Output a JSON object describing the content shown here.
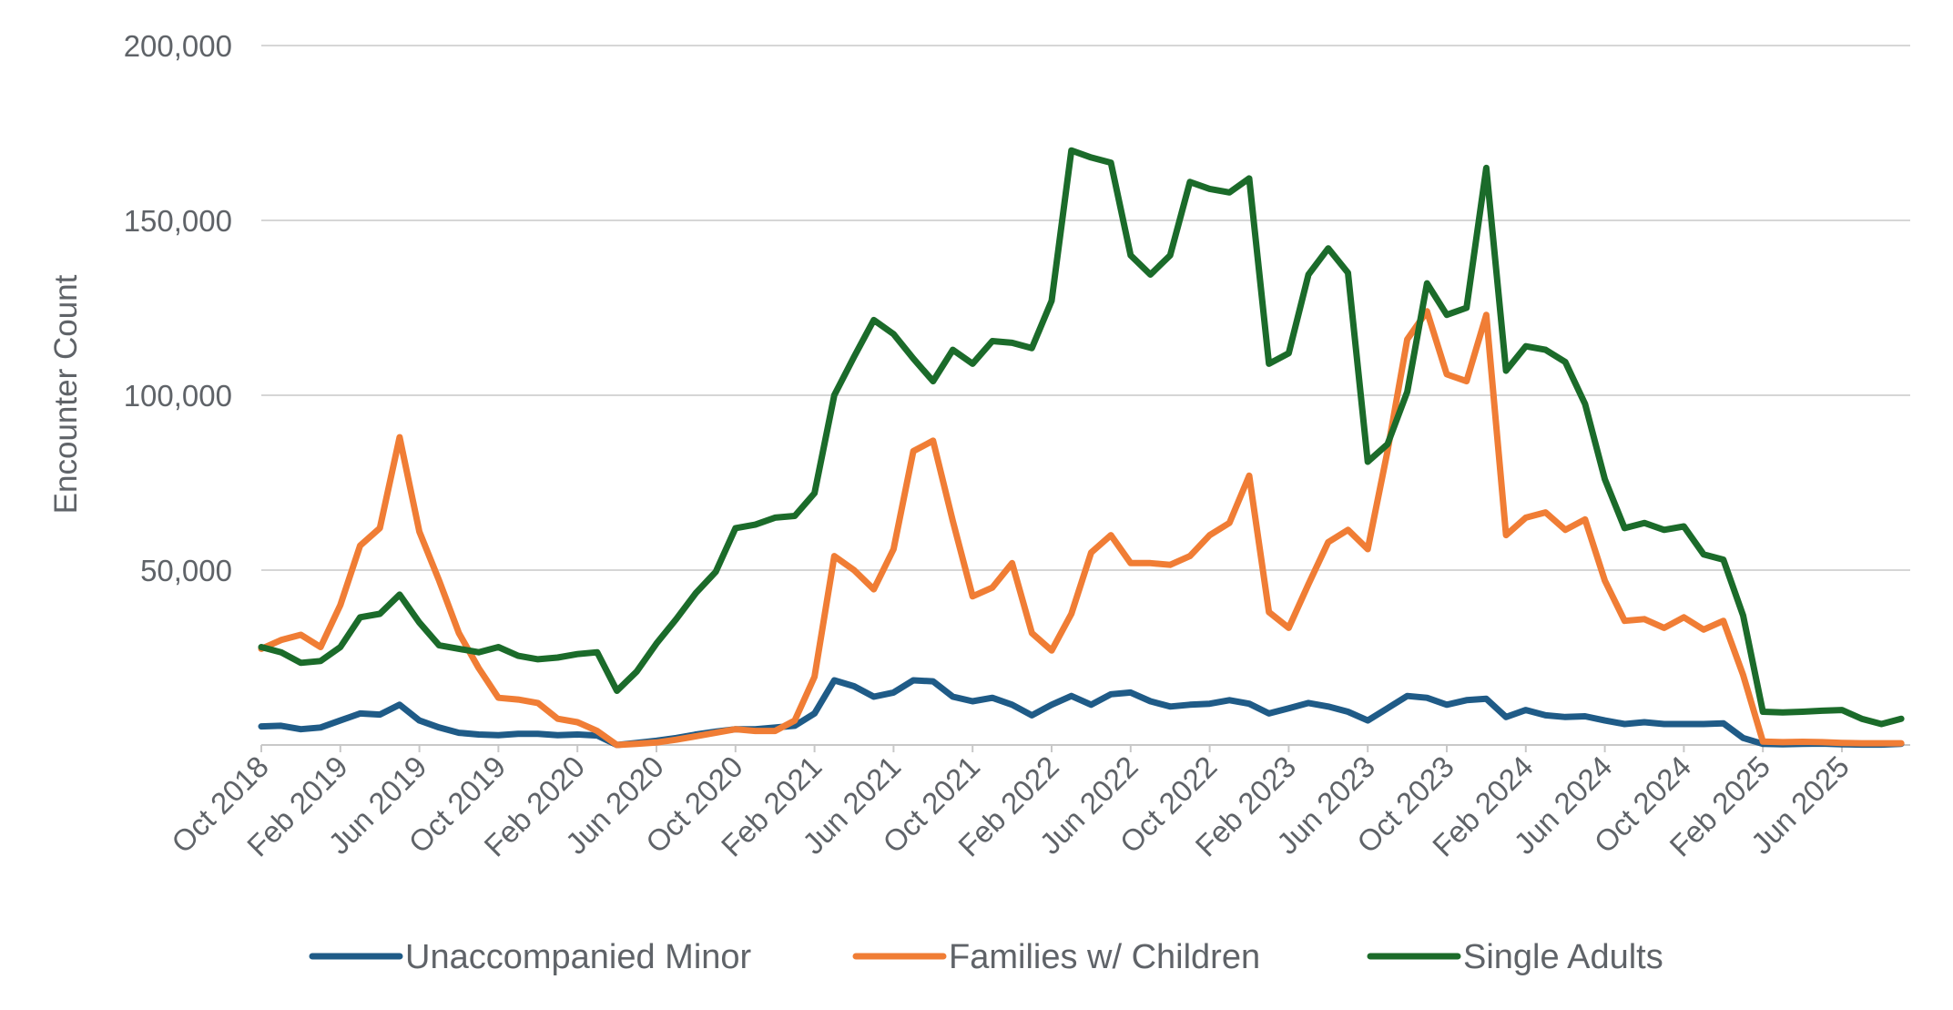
{
  "chart_data": {
    "type": "line",
    "title": "",
    "xlabel": "",
    "ylabel": "Encounter Count",
    "ylim": [
      0,
      200000
    ],
    "yticks": [
      50000,
      100000,
      150000,
      200000
    ],
    "ytick_labels": [
      "50,000",
      "100,000",
      "150,000",
      "200,000"
    ],
    "x": [
      "Oct 2018",
      "Nov 2018",
      "Dec 2018",
      "Jan 2019",
      "Feb 2019",
      "Mar 2019",
      "Apr 2019",
      "May 2019",
      "Jun 2019",
      "Jul 2019",
      "Aug 2019",
      "Sep 2019",
      "Oct 2019",
      "Nov 2019",
      "Dec 2019",
      "Jan 2020",
      "Feb 2020",
      "Mar 2020",
      "Apr 2020",
      "May 2020",
      "Jun 2020",
      "Jul 2020",
      "Aug 2020",
      "Sep 2020",
      "Oct 2020",
      "Nov 2020",
      "Dec 2020",
      "Jan 2021",
      "Feb 2021",
      "Mar 2021",
      "Apr 2021",
      "May 2021",
      "Jun 2021",
      "Jul 2021",
      "Aug 2021",
      "Sep 2021",
      "Oct 2021",
      "Nov 2021",
      "Dec 2021",
      "Jan 2022",
      "Feb 2022",
      "Mar 2022",
      "Apr 2022",
      "May 2022",
      "Jun 2022",
      "Jul 2022",
      "Aug 2022",
      "Sep 2022",
      "Oct 2022",
      "Nov 2022",
      "Dec 2022",
      "Jan 2023",
      "Feb 2023",
      "Mar 2023",
      "Apr 2023",
      "May 2023",
      "Jun 2023",
      "Jul 2023",
      "Aug 2023",
      "Sep 2023",
      "Oct 2023",
      "Nov 2023",
      "Dec 2023",
      "Jan 2024",
      "Feb 2024",
      "Mar 2024",
      "Apr 2024",
      "May 2024",
      "Jun 2024",
      "Jul 2024",
      "Aug 2024",
      "Sep 2024",
      "Oct 2024",
      "Nov 2024",
      "Dec 2024",
      "Jan 2025",
      "Feb 2025",
      "Mar 2025",
      "Apr 2025",
      "May 2025",
      "Jun 2025",
      "Jul 2025",
      "Aug 2025",
      "Sep 2025"
    ],
    "xtick_labels": [
      "Oct 2018",
      "Feb 2019",
      "Jun 2019",
      "Oct 2019",
      "Feb 2020",
      "Jun 2020",
      "Oct 2020",
      "Feb 2021",
      "Jun 2021",
      "Oct 2021",
      "Feb 2022",
      "Jun 2022",
      "Oct 2022",
      "Feb 2023",
      "Jun 2023",
      "Oct 2023",
      "Feb 2024",
      "Jun 2024",
      "Oct 2024",
      "Feb 2025",
      "Jun 2025"
    ],
    "xtick_every": 4,
    "series": [
      {
        "name": "Unaccompanied Minor",
        "color": "#1f5b87",
        "values": [
          5300,
          5500,
          4500,
          5000,
          7000,
          9000,
          8700,
          11500,
          7000,
          5000,
          3500,
          3000,
          2800,
          3200,
          3200,
          2800,
          3000,
          2700,
          0,
          600,
          1200,
          2000,
          3000,
          3800,
          4500,
          4500,
          5000,
          5500,
          9000,
          18500,
          16800,
          13800,
          15000,
          18500,
          18200,
          13800,
          12500,
          13500,
          11500,
          8500,
          11500,
          14000,
          11500,
          14500,
          15000,
          12500,
          11000,
          11500,
          11800,
          12800,
          11800,
          9000,
          10500,
          12000,
          11000,
          9500,
          7000,
          10500,
          14000,
          13500,
          11500,
          12800,
          13200,
          8000,
          10000,
          8500,
          8000,
          8200,
          7000,
          6000,
          6500,
          6000,
          6000,
          6000,
          6200,
          2000,
          300,
          200,
          300,
          400,
          200,
          100,
          100,
          300
        ]
      },
      {
        "name": "Families w/ Children",
        "color": "#f07d35",
        "values": [
          27500,
          30000,
          31500,
          28000,
          40000,
          57000,
          62000,
          88000,
          61000,
          47000,
          32000,
          22000,
          13500,
          13000,
          12000,
          7500,
          6500,
          4000,
          0,
          300,
          700,
          1500,
          2500,
          3500,
          4500,
          4000,
          4000,
          7000,
          19500,
          54000,
          50000,
          44500,
          56000,
          84000,
          87000,
          64000,
          42500,
          45000,
          52000,
          32000,
          27000,
          37500,
          55000,
          60000,
          52000,
          52000,
          51500,
          54000,
          60000,
          63500,
          77000,
          38000,
          33500,
          46000,
          58000,
          61500,
          56000,
          84000,
          116000,
          124000,
          106000,
          104000,
          123000,
          60000,
          65000,
          66500,
          61500,
          64500,
          47000,
          35500,
          36000,
          33500,
          36500,
          33000,
          35500,
          20000,
          1000,
          800,
          900,
          800,
          600,
          500,
          500,
          500
        ]
      },
      {
        "name": "Single Adults",
        "color": "#1b6b2a",
        "values": [
          28000,
          26500,
          23500,
          24000,
          28000,
          36500,
          37500,
          43000,
          35000,
          28500,
          27500,
          26500,
          28000,
          25500,
          24500,
          25000,
          26000,
          26500,
          15500,
          21000,
          29000,
          36000,
          43500,
          49500,
          62000,
          63000,
          65000,
          65500,
          72000,
          100000,
          111000,
          121500,
          117500,
          110500,
          104000,
          113000,
          109000,
          115500,
          115000,
          113500,
          127000,
          170000,
          168000,
          166500,
          140000,
          134500,
          140000,
          161000,
          159000,
          158000,
          162000,
          109000,
          112000,
          134500,
          142000,
          135000,
          81000,
          86000,
          101000,
          132000,
          123000,
          125000,
          165000,
          107000,
          114000,
          113000,
          109500,
          97500,
          76000,
          62000,
          63500,
          61500,
          62500,
          54500,
          53000,
          37000,
          9500,
          9300,
          9500,
          9800,
          10000,
          7500,
          6000,
          7500
        ]
      }
    ],
    "legend": [
      "Unaccompanied Minor",
      "Families w/ Children",
      "Single Adults"
    ],
    "legend_position": "bottom",
    "grid": true
  }
}
